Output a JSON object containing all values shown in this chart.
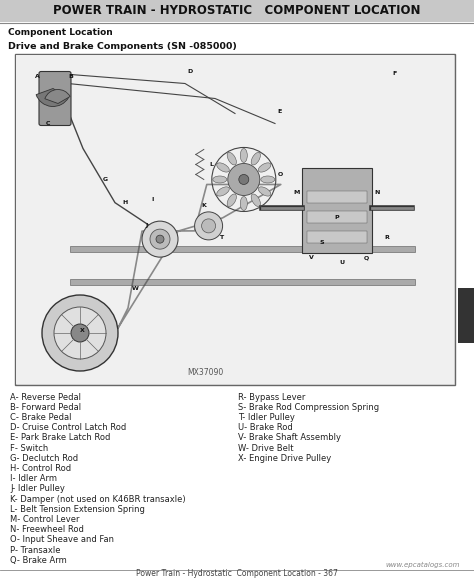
{
  "title": "POWER TRAIN - HYDROSTATIC   COMPONENT LOCATION",
  "subtitle": "Component Location",
  "sub_subtitle": "Drive and Brake Components (SN -085000)",
  "footer_text": "Power Train - Hydrostatic  Component Location - 367",
  "footer_url": "www.epcatalogs.com",
  "diagram_label": "MX37090",
  "left_legend": [
    "A- Reverse Pedal",
    "B- Forward Pedal",
    "C- Brake Pedal",
    "D- Cruise Control Latch Rod",
    "E- Park Brake Latch Rod",
    "F- Switch",
    "G- Declutch Rod",
    "H- Control Rod",
    "I- Idler Arm",
    "J- Idler Pulley",
    "K- Damper (not used on K46BR transaxle)",
    "L- Belt Tension Extension Spring",
    "M- Control Lever",
    "N- Freewheel Rod",
    "O- Input Sheave and Fan",
    "P- Transaxle",
    "Q- Brake Arm"
  ],
  "right_legend": [
    "R- Bypass Lever",
    "S- Brake Rod Compression Spring",
    "T- Idler Pulley",
    "U- Brake Rod",
    "V- Brake Shaft Assembly",
    "W- Drive Belt",
    "X- Engine Drive Pulley"
  ],
  "bg_color": "#ffffff",
  "title_bg": "#c8c8c8",
  "title_color": "#111111",
  "text_color": "#222222",
  "border_color": "#666666",
  "title_fontsize": 8.5,
  "subtitle_fontsize": 6.5,
  "sub_subtitle_fontsize": 6.8,
  "legend_fontsize": 6.0,
  "footer_fontsize": 5.5,
  "diagram_label_fontsize": 5.5,
  "tab_color": "#333333"
}
